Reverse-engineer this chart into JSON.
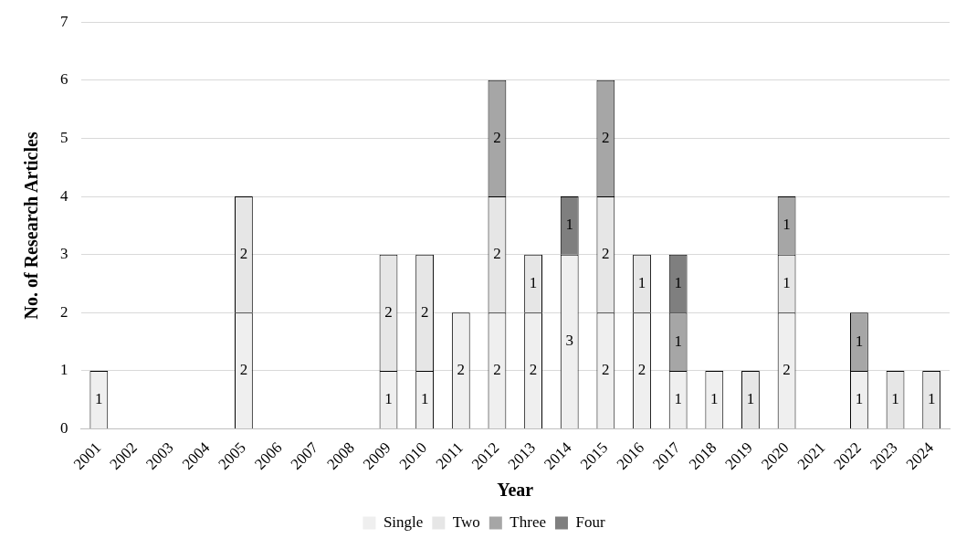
{
  "chart_data": {
    "type": "bar",
    "stacked": true,
    "xlabel": "Year",
    "ylabel": "No. of Research Articles",
    "categories": [
      "2001",
      "2002",
      "2003",
      "2004",
      "2005",
      "2006",
      "2007",
      "2008",
      "2009",
      "2010",
      "2011",
      "2012",
      "2013",
      "2014",
      "2015",
      "2016",
      "2017",
      "2018",
      "2019",
      "2020",
      "2021",
      "2022",
      "2023",
      "2024"
    ],
    "series": [
      {
        "name": "Single",
        "color": "#efefef",
        "values": [
          1,
          null,
          null,
          null,
          2,
          null,
          null,
          null,
          1,
          1,
          2,
          2,
          2,
          3,
          2,
          2,
          1,
          1,
          null,
          2,
          null,
          1,
          null,
          null
        ]
      },
      {
        "name": "Two",
        "color": "#e6e6e6",
        "values": [
          null,
          null,
          null,
          null,
          2,
          null,
          null,
          null,
          2,
          2,
          null,
          2,
          1,
          null,
          2,
          1,
          null,
          null,
          1,
          1,
          null,
          null,
          1,
          1
        ]
      },
      {
        "name": "Three",
        "color": "#a6a6a6",
        "values": [
          null,
          null,
          null,
          null,
          null,
          null,
          null,
          null,
          null,
          null,
          null,
          2,
          null,
          null,
          2,
          null,
          1,
          null,
          null,
          1,
          null,
          1,
          null,
          null
        ]
      },
      {
        "name": "Four",
        "color": "#7f7f7f",
        "values": [
          null,
          null,
          null,
          null,
          null,
          null,
          null,
          null,
          null,
          null,
          null,
          null,
          null,
          1,
          null,
          null,
          1,
          null,
          null,
          null,
          null,
          null,
          null,
          null
        ]
      }
    ],
    "ylim": [
      0,
      7
    ],
    "yticks": [
      0,
      1,
      2,
      3,
      4,
      5,
      6,
      7
    ],
    "grid": "y",
    "legend": "bottom",
    "data_labels": true
  }
}
